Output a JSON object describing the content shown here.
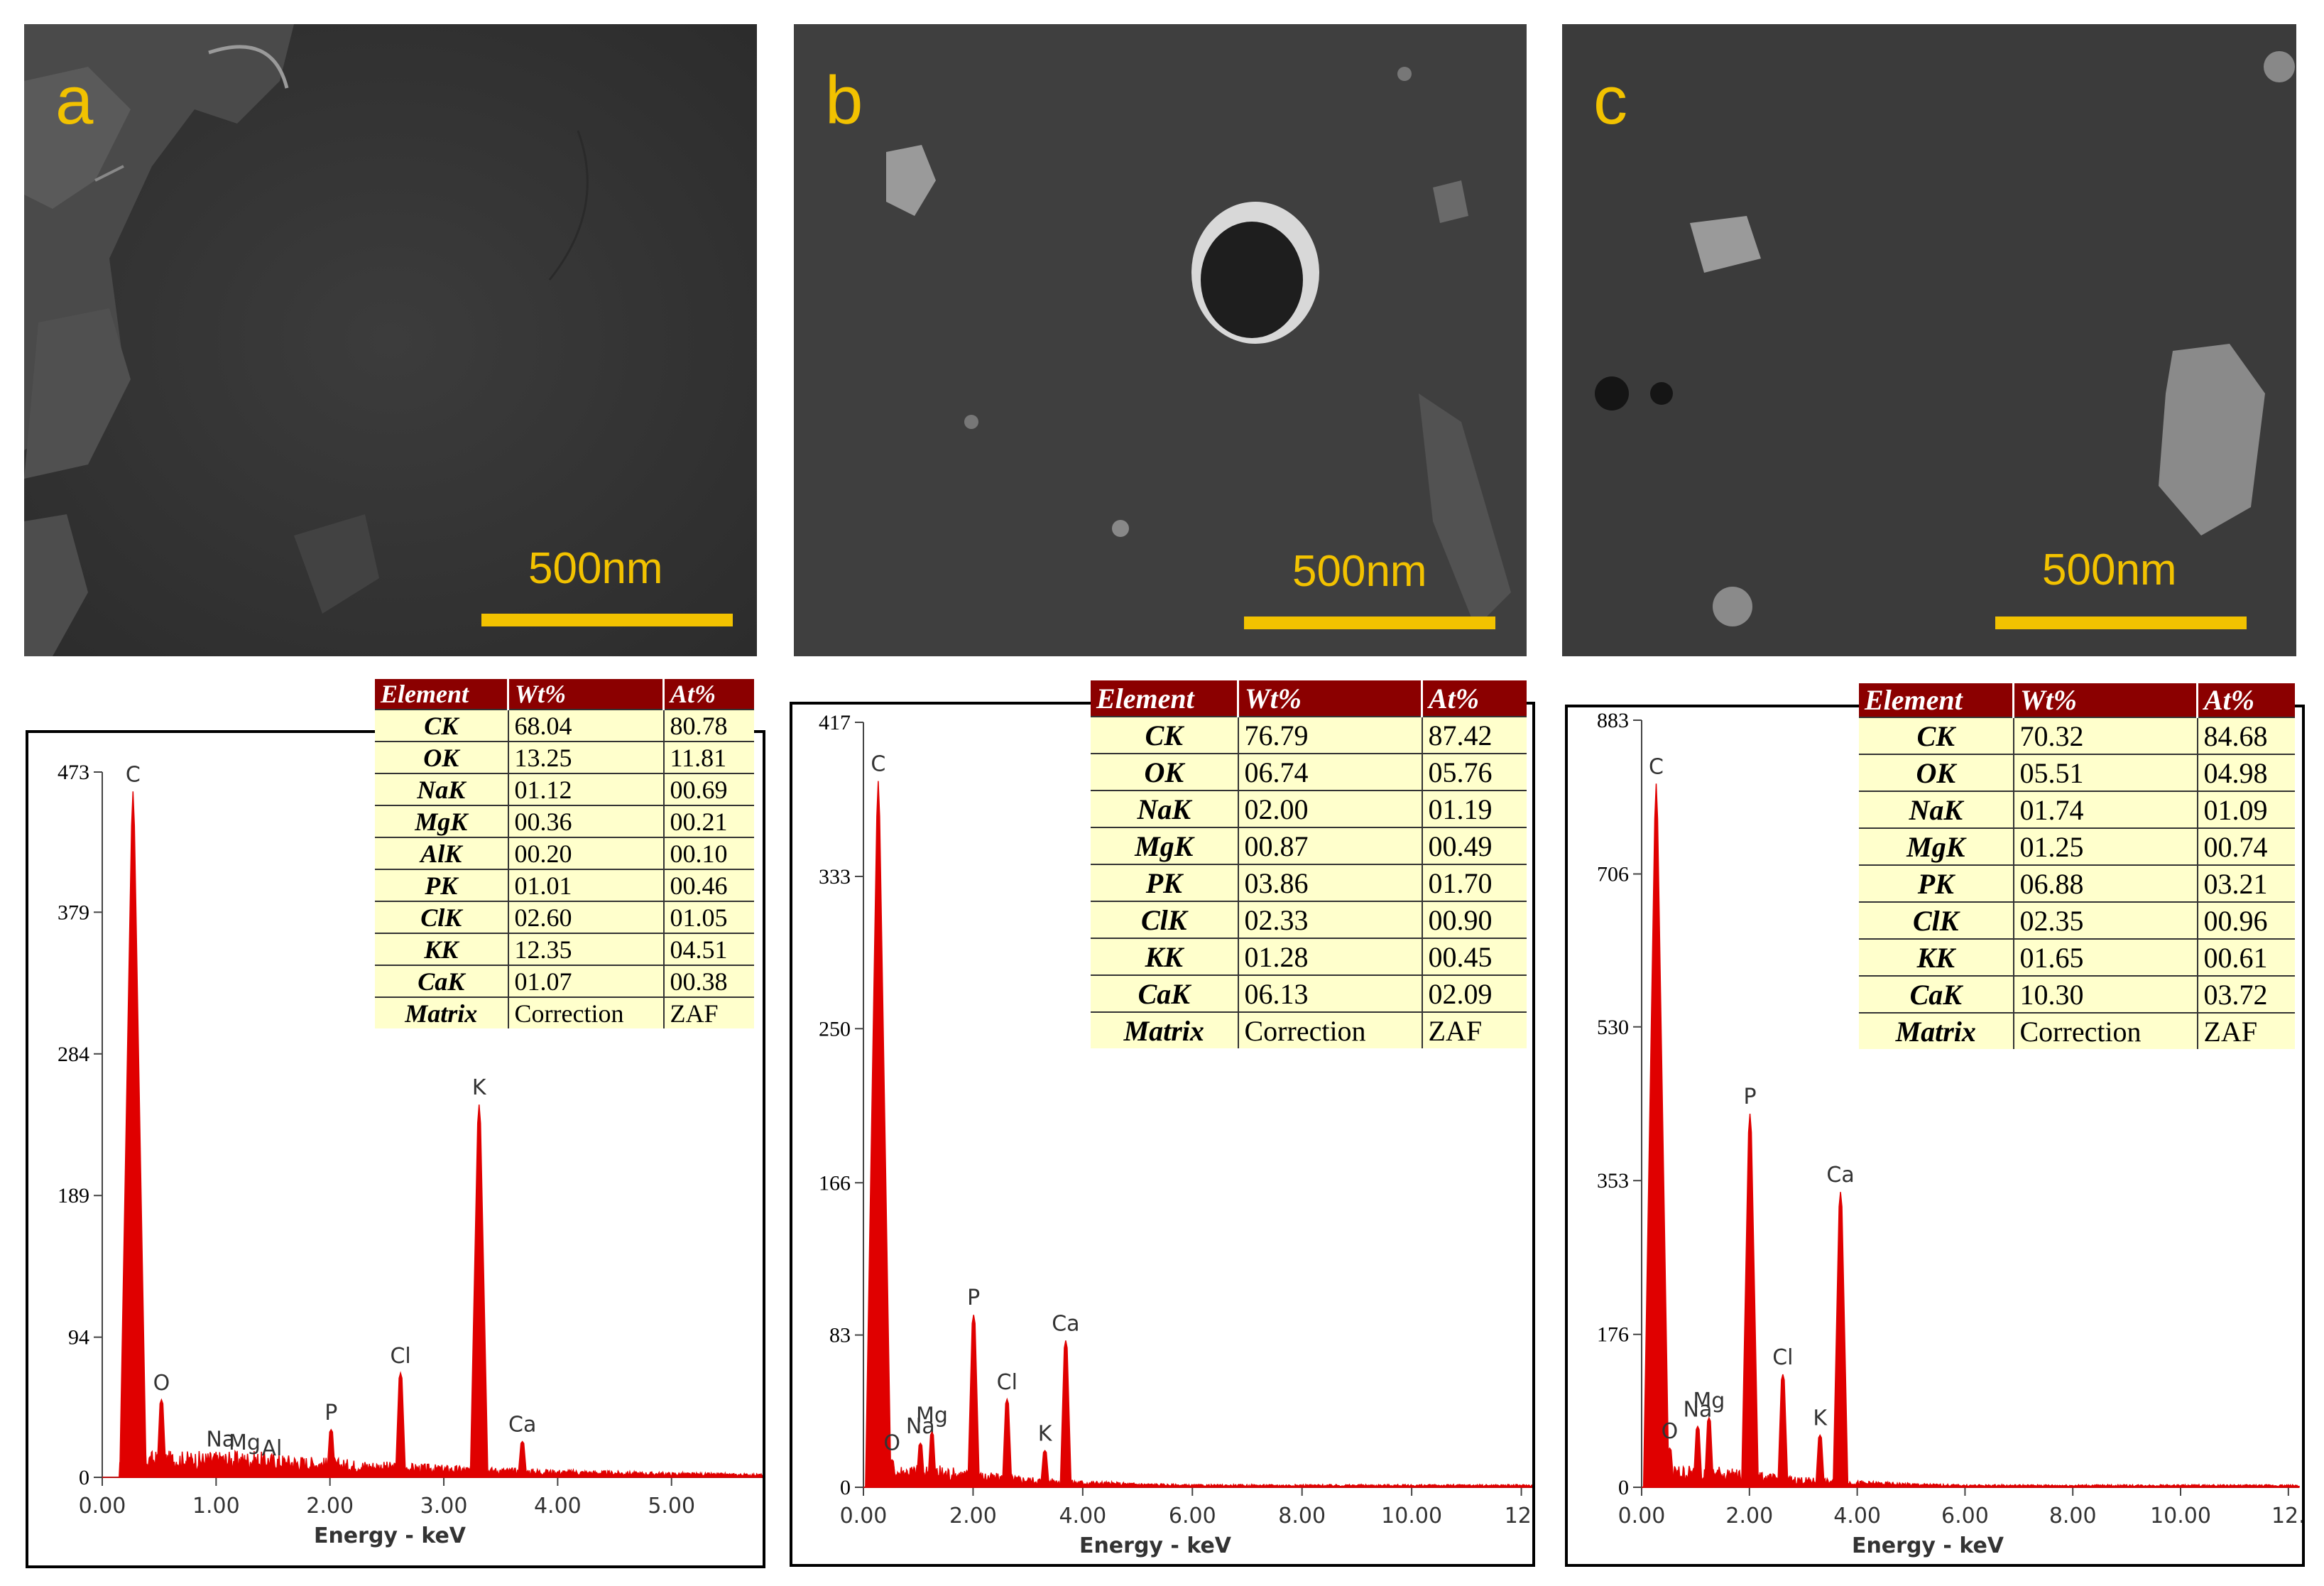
{
  "colors": {
    "scale": "#f2c200",
    "spectrum": "#e00000",
    "header": "#8b0000",
    "table_bg": "#ffffcc"
  },
  "panels": [
    {
      "letter": "a",
      "scale_label": "500nm",
      "table": {
        "headers": [
          "Element",
          "Wt%",
          "At%"
        ],
        "rows": [
          [
            "CK",
            "68.04",
            "80.78"
          ],
          [
            "OK",
            "13.25",
            "11.81"
          ],
          [
            "NaK",
            "01.12",
            "00.69"
          ],
          [
            "MgK",
            "00.36",
            "00.21"
          ],
          [
            "AlK",
            "00.20",
            "00.10"
          ],
          [
            "PK",
            "01.01",
            "00.46"
          ],
          [
            "ClK",
            "02.60",
            "01.05"
          ],
          [
            "KK",
            "12.35",
            "04.51"
          ],
          [
            "CaK",
            "01.07",
            "00.38"
          ],
          [
            "Matrix",
            "Correction",
            "ZAF"
          ]
        ]
      }
    },
    {
      "letter": "b",
      "scale_label": "500nm",
      "table": {
        "headers": [
          "Element",
          "Wt%",
          "At%"
        ],
        "rows": [
          [
            "CK",
            "76.79",
            "87.42"
          ],
          [
            "OK",
            "06.74",
            "05.76"
          ],
          [
            "NaK",
            "02.00",
            "01.19"
          ],
          [
            "MgK",
            "00.87",
            "00.49"
          ],
          [
            "PK",
            "03.86",
            "01.70"
          ],
          [
            "ClK",
            "02.33",
            "00.90"
          ],
          [
            "KK",
            "01.28",
            "00.45"
          ],
          [
            "CaK",
            "06.13",
            "02.09"
          ],
          [
            "Matrix",
            "Correction",
            "ZAF"
          ]
        ]
      }
    },
    {
      "letter": "c",
      "scale_label": "500nm",
      "table": {
        "headers": [
          "Element",
          "Wt%",
          "At%"
        ],
        "rows": [
          [
            "CK",
            "70.32",
            "84.68"
          ],
          [
            "OK",
            "05.51",
            "04.98"
          ],
          [
            "NaK",
            "01.74",
            "01.09"
          ],
          [
            "MgK",
            "01.25",
            "00.74"
          ],
          [
            "PK",
            "06.88",
            "03.21"
          ],
          [
            "ClK",
            "02.35",
            "00.96"
          ],
          [
            "KK",
            "01.65",
            "00.61"
          ],
          [
            "CaK",
            "10.30",
            "03.72"
          ],
          [
            "Matrix",
            "Correction",
            "ZAF"
          ]
        ]
      }
    }
  ],
  "chart_data": [
    {
      "type": "line",
      "title": "",
      "xlabel": "Energy - keV",
      "ylabel": "",
      "xlim": [
        0,
        5.8
      ],
      "ylim": [
        0,
        473
      ],
      "x_ticks": [
        0,
        1,
        2,
        3,
        4,
        5
      ],
      "x_tick_labels": [
        "0.00",
        "1.00",
        "2.00",
        "3.00",
        "4.00",
        "5.00"
      ],
      "y_ticks": [
        0,
        94,
        189,
        284,
        379,
        473
      ],
      "y_tick_labels": [
        "0",
        "94",
        "189",
        "284",
        "379",
        "473"
      ],
      "noise_level": 7,
      "peaks": [
        {
          "label": "C",
          "x": 0.27,
          "y": 460
        },
        {
          "label": "O",
          "x": 0.52,
          "y": 52
        },
        {
          "label": "Na",
          "x": 1.04,
          "y": 14
        },
        {
          "label": "Mg",
          "x": 1.25,
          "y": 12
        },
        {
          "label": "Al",
          "x": 1.49,
          "y": 8
        },
        {
          "label": "P",
          "x": 2.01,
          "y": 32
        },
        {
          "label": "Cl",
          "x": 2.62,
          "y": 70
        },
        {
          "label": "K",
          "x": 3.31,
          "y": 250
        },
        {
          "label": "Ca",
          "x": 3.69,
          "y": 24
        }
      ]
    },
    {
      "type": "line",
      "title": "",
      "xlabel": "Energy - keV",
      "ylabel": "",
      "xlim": [
        0,
        12.2
      ],
      "ylim": [
        0,
        417
      ],
      "x_ticks": [
        0,
        2,
        4,
        6,
        8,
        10,
        12
      ],
      "x_tick_labels": [
        "0.00",
        "2.00",
        "4.00",
        "6.00",
        "8.00",
        "10.00",
        "12."
      ],
      "y_ticks": [
        0,
        83,
        166,
        250,
        333,
        417
      ],
      "y_tick_labels": [
        "0",
        "83",
        "166",
        "250",
        "333",
        "417"
      ],
      "noise_level": 5,
      "peaks": [
        {
          "label": "C",
          "x": 0.27,
          "y": 385
        },
        {
          "label": "O",
          "x": 0.52,
          "y": 15
        },
        {
          "label": "Na",
          "x": 1.04,
          "y": 24
        },
        {
          "label": "Mg",
          "x": 1.25,
          "y": 30
        },
        {
          "label": "P",
          "x": 2.01,
          "y": 94
        },
        {
          "label": "Cl",
          "x": 2.62,
          "y": 48
        },
        {
          "label": "K",
          "x": 3.31,
          "y": 20
        },
        {
          "label": "Ca",
          "x": 3.69,
          "y": 80
        }
      ]
    },
    {
      "type": "line",
      "title": "",
      "xlabel": "Energy - keV",
      "ylabel": "",
      "xlim": [
        0,
        12.2
      ],
      "ylim": [
        0,
        883
      ],
      "x_ticks": [
        0,
        2,
        4,
        6,
        8,
        10,
        12
      ],
      "x_tick_labels": [
        "0.00",
        "2.00",
        "4.00",
        "6.00",
        "8.00",
        "10.00",
        "12."
      ],
      "y_ticks": [
        0,
        176,
        353,
        530,
        706,
        883
      ],
      "y_tick_labels": [
        "0",
        "176",
        "353",
        "530",
        "706",
        "883"
      ],
      "noise_level": 10,
      "peaks": [
        {
          "label": "C",
          "x": 0.27,
          "y": 810
        },
        {
          "label": "O",
          "x": 0.52,
          "y": 45
        },
        {
          "label": "Na",
          "x": 1.04,
          "y": 70
        },
        {
          "label": "Mg",
          "x": 1.25,
          "y": 80
        },
        {
          "label": "P",
          "x": 2.01,
          "y": 430
        },
        {
          "label": "Cl",
          "x": 2.62,
          "y": 130
        },
        {
          "label": "K",
          "x": 3.31,
          "y": 60
        },
        {
          "label": "Ca",
          "x": 3.69,
          "y": 340
        }
      ]
    }
  ]
}
